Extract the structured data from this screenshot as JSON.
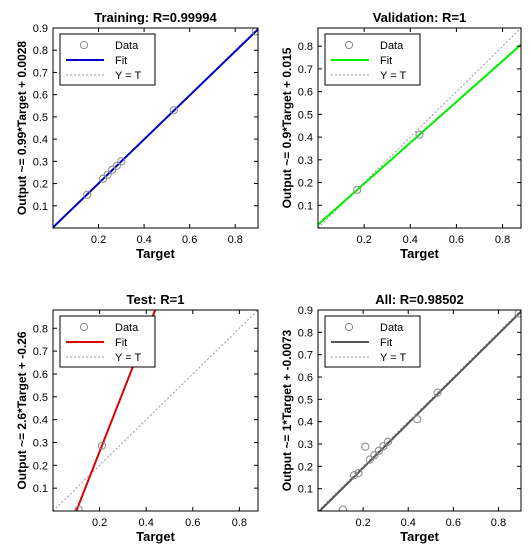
{
  "chart_data": [
    {
      "type": "scatter",
      "title": "Training: R=0.99994",
      "xlabel": "Target",
      "ylabel": "Output ~= 0.99*Target + 0.0028",
      "xlim": [
        0,
        0.9
      ],
      "ylim": [
        0,
        0.9
      ],
      "xticks": [
        "0.2",
        "0.4",
        "0.6",
        "0.8"
      ],
      "yticks": [
        "0.1",
        "0.2",
        "0.3",
        "0.4",
        "0.5",
        "0.6",
        "0.7",
        "0.8",
        "0.9"
      ],
      "fit": {
        "slope": 0.99,
        "intercept": 0.0028,
        "color": "#0000cc"
      },
      "points": [
        [
          0.15,
          0.15
        ],
        [
          0.22,
          0.222
        ],
        [
          0.24,
          0.24
        ],
        [
          0.26,
          0.262
        ],
        [
          0.28,
          0.28
        ],
        [
          0.3,
          0.3
        ],
        [
          0.53,
          0.53
        ],
        [
          0.89,
          0.885
        ]
      ],
      "legend": {
        "data": "Data",
        "fit": "Fit",
        "yt": "Y = T"
      }
    },
    {
      "type": "scatter",
      "title": "Validation: R=1",
      "xlabel": "Target",
      "ylabel": "Output ~= 0.9*Target + 0.015",
      "xlim": [
        0,
        0.88
      ],
      "ylim": [
        0,
        0.88
      ],
      "xticks": [
        "0.2",
        "0.4",
        "0.6",
        "0.8"
      ],
      "yticks": [
        "0.1",
        "0.2",
        "0.3",
        "0.4",
        "0.5",
        "0.6",
        "0.7",
        "0.8"
      ],
      "fit": {
        "slope": 0.9,
        "intercept": 0.015,
        "color": "#00ee00"
      },
      "points": [
        [
          0.17,
          0.168
        ],
        [
          0.44,
          0.411
        ]
      ],
      "legend": {
        "data": "Data",
        "fit": "Fit",
        "yt": "Y = T"
      }
    },
    {
      "type": "scatter",
      "title": "Test: R=1",
      "xlabel": "Target",
      "ylabel": "Output ~= 2.6*Target + -0.26",
      "xlim": [
        0,
        0.88
      ],
      "ylim": [
        0,
        0.88
      ],
      "xticks": [
        "0.2",
        "0.4",
        "0.6",
        "0.8"
      ],
      "yticks": [
        "0.1",
        "0.2",
        "0.3",
        "0.4",
        "0.5",
        "0.6",
        "0.7",
        "0.8"
      ],
      "fit": {
        "slope": 2.6,
        "intercept": -0.26,
        "color": "#dd0000"
      },
      "points": [
        [
          0.11,
          0.006
        ],
        [
          0.21,
          0.286
        ]
      ],
      "legend": {
        "data": "Data",
        "fit": "Fit",
        "yt": "Y = T"
      }
    },
    {
      "type": "scatter",
      "title": "All: R=0.98502",
      "xlabel": "Target",
      "ylabel": "Output ~= 1*Target + -0.0073",
      "xlim": [
        0,
        0.9
      ],
      "ylim": [
        0,
        0.9
      ],
      "xticks": [
        "0.2",
        "0.4",
        "0.6",
        "0.8"
      ],
      "yticks": [
        "0.1",
        "0.2",
        "0.3",
        "0.4",
        "0.5",
        "0.6",
        "0.7",
        "0.8",
        "0.9"
      ],
      "fit": {
        "slope": 1.0,
        "intercept": -0.0073,
        "color": "#555555"
      },
      "points": [
        [
          0.11,
          0.006
        ],
        [
          0.16,
          0.16
        ],
        [
          0.18,
          0.17
        ],
        [
          0.21,
          0.288
        ],
        [
          0.23,
          0.23
        ],
        [
          0.25,
          0.25
        ],
        [
          0.27,
          0.27
        ],
        [
          0.29,
          0.29
        ],
        [
          0.31,
          0.31
        ],
        [
          0.44,
          0.411
        ],
        [
          0.53,
          0.53
        ],
        [
          0.89,
          0.885
        ]
      ],
      "legend": {
        "data": "Data",
        "fit": "Fit",
        "yt": "Y = T"
      }
    }
  ]
}
